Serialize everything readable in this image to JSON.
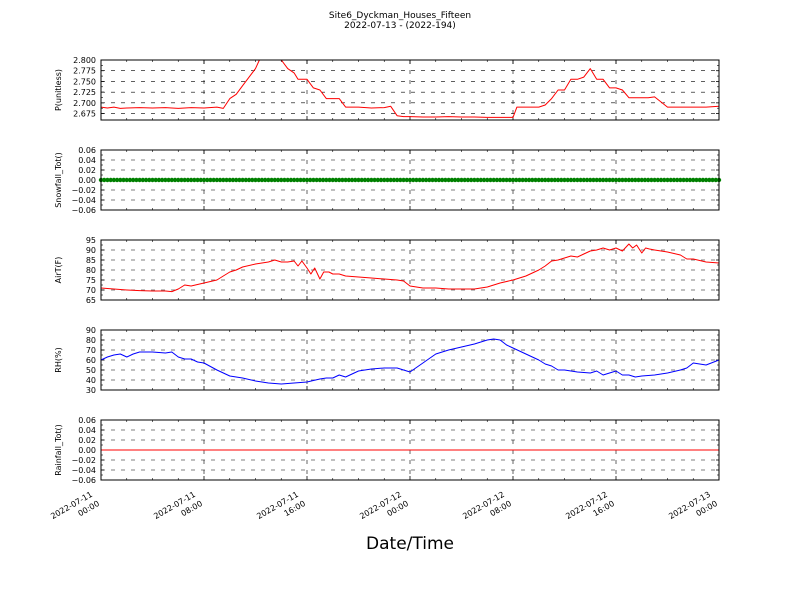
{
  "title": "Site6_Dyckman_Houses_Fifteen",
  "subtitle": "2022-07-13 - (2022-194)",
  "xlabel": "Date/Time",
  "x_ticks": [
    {
      "hours": 0,
      "line1": "2022-07-11",
      "line2": "00:00"
    },
    {
      "hours": 8,
      "line1": "2022-07-11",
      "line2": "08:00"
    },
    {
      "hours": 16,
      "line1": "2022-07-11",
      "line2": "16:00"
    },
    {
      "hours": 24,
      "line1": "2022-07-12",
      "line2": "00:00"
    },
    {
      "hours": 32,
      "line1": "2022-07-12",
      "line2": "08:00"
    },
    {
      "hours": 40,
      "line1": "2022-07-12",
      "line2": "16:00"
    },
    {
      "hours": 48,
      "line1": "2022-07-13",
      "line2": "00:00"
    }
  ],
  "chart_data": [
    {
      "type": "line",
      "ylabel": "P(unitless)",
      "ylim": [
        2.66,
        2.8
      ],
      "yticks": [
        "2.675",
        "2.700",
        "2.725",
        "2.750",
        "2.775",
        "2.800"
      ],
      "ytick_values": [
        2.675,
        2.7,
        2.725,
        2.75,
        2.775,
        2.8
      ],
      "color": "#ff0000",
      "grid": true,
      "series": [
        {
          "x": [
            0,
            0.5,
            1,
            1.5,
            2,
            3,
            4,
            5,
            6,
            7,
            8,
            9,
            9.5,
            10,
            10.5,
            11,
            11.5,
            12,
            12.3,
            13,
            13.5,
            14,
            14.5,
            15,
            15.3,
            16,
            16.5,
            17,
            17.5,
            18,
            18.5,
            19,
            19.5,
            20,
            21,
            22,
            22.5,
            23,
            23.5,
            24,
            25,
            26,
            27,
            28,
            29,
            30,
            31,
            32,
            32.3,
            33,
            34,
            34.5,
            35,
            35.5,
            36,
            36.5,
            37,
            37.5,
            38,
            38.5,
            39,
            39.5,
            40,
            40.5,
            41,
            41.5,
            42,
            42.5,
            43,
            44,
            45,
            46,
            47,
            48
          ],
          "y": [
            2.69,
            2.688,
            2.69,
            2.687,
            2.688,
            2.689,
            2.688,
            2.689,
            2.687,
            2.689,
            2.688,
            2.69,
            2.687,
            2.71,
            2.72,
            2.74,
            2.76,
            2.78,
            2.8,
            2.8,
            2.8,
            2.8,
            2.78,
            2.77,
            2.755,
            2.755,
            2.735,
            2.73,
            2.71,
            2.71,
            2.71,
            2.69,
            2.69,
            2.69,
            2.688,
            2.689,
            2.692,
            2.67,
            2.668,
            2.668,
            2.667,
            2.667,
            2.668,
            2.667,
            2.667,
            2.666,
            2.666,
            2.666,
            2.69,
            2.69,
            2.69,
            2.695,
            2.71,
            2.73,
            2.73,
            2.755,
            2.755,
            2.76,
            2.78,
            2.755,
            2.755,
            2.735,
            2.735,
            2.73,
            2.712,
            2.712,
            2.712,
            2.712,
            2.714,
            2.69,
            2.69,
            2.69,
            2.69,
            2.692
          ]
        }
      ]
    },
    {
      "type": "scatter",
      "ylabel": "Snowfall_Tot()",
      "ylim": [
        -0.06,
        0.06
      ],
      "yticks": [
        "−0.06",
        "−0.04",
        "−0.02",
        "0.00",
        "0.02",
        "0.04",
        "0.06"
      ],
      "ytick_values": [
        -0.06,
        -0.04,
        -0.02,
        0,
        0.02,
        0.04,
        0.06
      ],
      "color": "#008000",
      "grid": true,
      "series": [
        {
          "x_range": [
            0,
            48
          ],
          "value": 0.0
        }
      ]
    },
    {
      "type": "line",
      "ylabel": "AirT(F)",
      "ylim": [
        65,
        95
      ],
      "yticks": [
        "65",
        "70",
        "75",
        "80",
        "85",
        "90",
        "95"
      ],
      "ytick_values": [
        65,
        70,
        75,
        80,
        85,
        90,
        95
      ],
      "color": "#ff0000",
      "grid": true,
      "series": [
        {
          "x": [
            0,
            1,
            2,
            3,
            4,
            5,
            5.5,
            6,
            6.5,
            7,
            8,
            9,
            9.5,
            10,
            10.5,
            11,
            12,
            13,
            13.5,
            14,
            14.5,
            15,
            15.3,
            15.6,
            16,
            16.3,
            16.6,
            17,
            17.3,
            17.7,
            18,
            18.5,
            19,
            20,
            21,
            22,
            23,
            23.5,
            24,
            25,
            26,
            27,
            28,
            29,
            30,
            31,
            32,
            33,
            34,
            34.5,
            35,
            35.5,
            36,
            36.5,
            37,
            37.5,
            38,
            38.5,
            39,
            39.5,
            40,
            40.5,
            41,
            41.3,
            41.6,
            42,
            42.3,
            42.6,
            43,
            44,
            45,
            45.5,
            46,
            47,
            48
          ],
          "y": [
            71,
            70.5,
            70,
            69.7,
            69.5,
            69.5,
            69.2,
            70.5,
            72.5,
            72,
            73.5,
            75,
            77,
            79,
            80,
            81.5,
            83,
            84,
            85,
            84,
            84,
            84.5,
            82,
            84.5,
            81,
            78,
            81,
            75.5,
            79,
            79,
            78,
            78,
            77,
            76.5,
            76,
            75.5,
            75,
            74.5,
            72,
            71,
            71,
            70.5,
            70.5,
            70.5,
            71.5,
            73.5,
            75,
            77,
            80,
            82,
            84.5,
            85,
            86,
            87,
            86.5,
            88,
            89.5,
            90,
            91,
            90,
            91,
            89.5,
            93,
            91,
            92.5,
            88.5,
            91,
            90.5,
            90,
            89,
            87.5,
            85.5,
            85.5,
            84,
            83.5
          ]
        }
      ]
    },
    {
      "type": "line",
      "ylabel": "RH(%)",
      "ylim": [
        30,
        90
      ],
      "yticks": [
        "30",
        "40",
        "50",
        "60",
        "70",
        "80",
        "90"
      ],
      "ytick_values": [
        30,
        40,
        50,
        60,
        70,
        80,
        90
      ],
      "color": "#0000ff",
      "grid": true,
      "series": [
        {
          "x": [
            0,
            0.5,
            1,
            1.5,
            2,
            2.5,
            3,
            4,
            5,
            5.5,
            6,
            6.5,
            7,
            7.5,
            8,
            9,
            10,
            11,
            12,
            13,
            14,
            15,
            16,
            17,
            17.5,
            18,
            18.5,
            19,
            20,
            21,
            22,
            23,
            23.5,
            24,
            25,
            26,
            27,
            28,
            29,
            30,
            30.5,
            31,
            31.5,
            32,
            33,
            34,
            34.5,
            35,
            35.5,
            36,
            37,
            38,
            38.5,
            39,
            40,
            40.5,
            41,
            41.5,
            42,
            43,
            44,
            45,
            45.5,
            46,
            47,
            48
          ],
          "y": [
            60,
            63,
            65,
            66,
            63,
            66,
            68,
            68,
            67,
            68,
            63,
            61,
            61,
            58,
            57,
            50,
            44,
            42,
            39,
            37,
            36,
            37,
            38,
            41,
            42,
            42,
            45,
            43,
            49,
            51,
            52,
            52,
            50,
            48,
            57,
            66,
            70,
            73,
            76,
            80,
            81,
            80,
            75,
            72,
            66,
            60,
            56,
            54,
            50,
            50,
            48,
            47,
            49,
            45,
            49,
            45,
            45,
            43,
            44,
            45,
            47,
            50,
            52,
            57,
            55,
            60
          ]
        }
      ]
    },
    {
      "type": "line",
      "ylabel": "Rainfall_Tot()",
      "ylim": [
        -0.06,
        0.06
      ],
      "yticks": [
        "−0.06",
        "−0.04",
        "−0.02",
        "0.00",
        "0.02",
        "0.04",
        "0.06"
      ],
      "ytick_values": [
        -0.06,
        -0.04,
        -0.02,
        0,
        0.02,
        0.04,
        0.06
      ],
      "color": "#ff0000",
      "grid": true,
      "series": [
        {
          "x": [
            0,
            48
          ],
          "y": [
            0,
            0
          ]
        }
      ]
    }
  ]
}
